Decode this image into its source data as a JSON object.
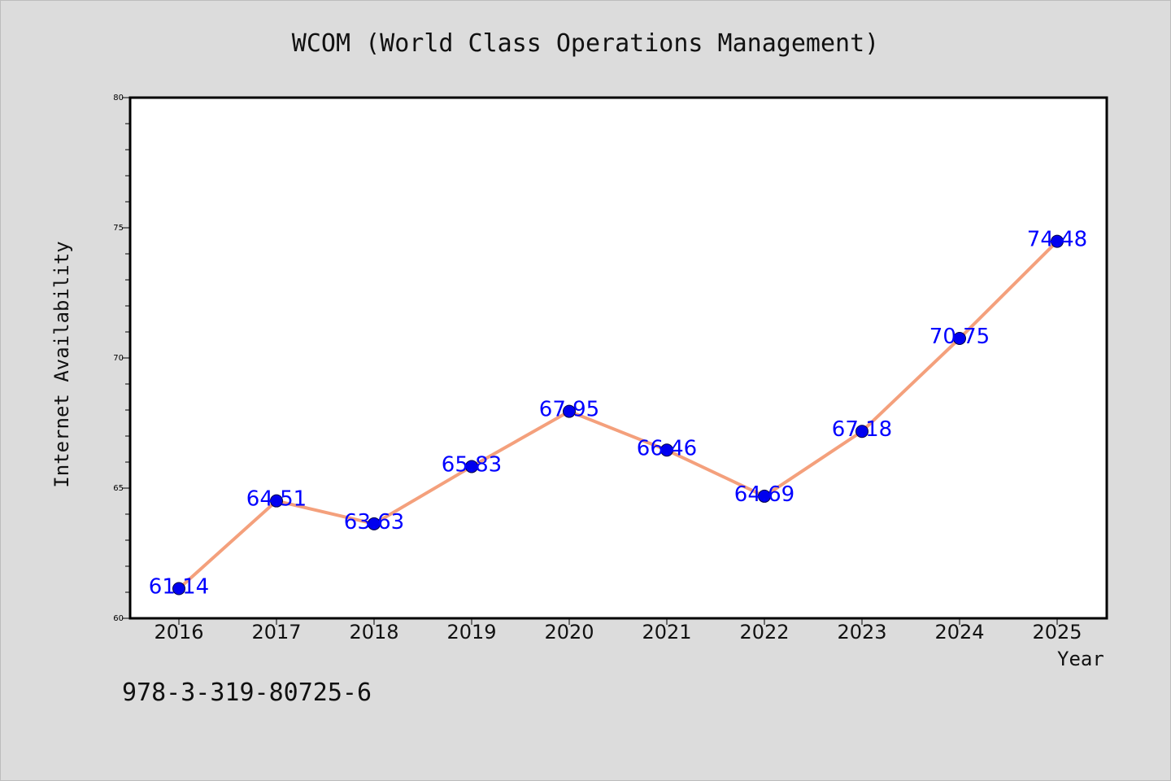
{
  "chart_data": {
    "type": "line",
    "title": "WCOM (World Class Operations Management)",
    "xlabel": "Year",
    "ylabel": "Internet Availability",
    "categories": [
      "2016",
      "2017",
      "2018",
      "2019",
      "2020",
      "2021",
      "2022",
      "2023",
      "2024",
      "2025"
    ],
    "values": [
      61.14,
      64.51,
      63.63,
      65.83,
      67.95,
      66.46,
      64.69,
      67.18,
      70.75,
      74.48
    ],
    "data_labels": [
      "61.14",
      "64.51",
      "63.63",
      "65.83",
      "67.95",
      "66.46",
      "64.69",
      "67.18",
      "70.75",
      "74.48"
    ],
    "ylim": [
      60,
      80
    ],
    "yticks": [
      60,
      65,
      70,
      75,
      80
    ],
    "grid": false,
    "colors": {
      "line": "#f4a07c",
      "marker": "#0000ee",
      "label": "#0000ff",
      "plot_background": "#ffffff",
      "figure_background": "#dcdcdc"
    }
  },
  "footer_text": "978-3-319-80725-6"
}
